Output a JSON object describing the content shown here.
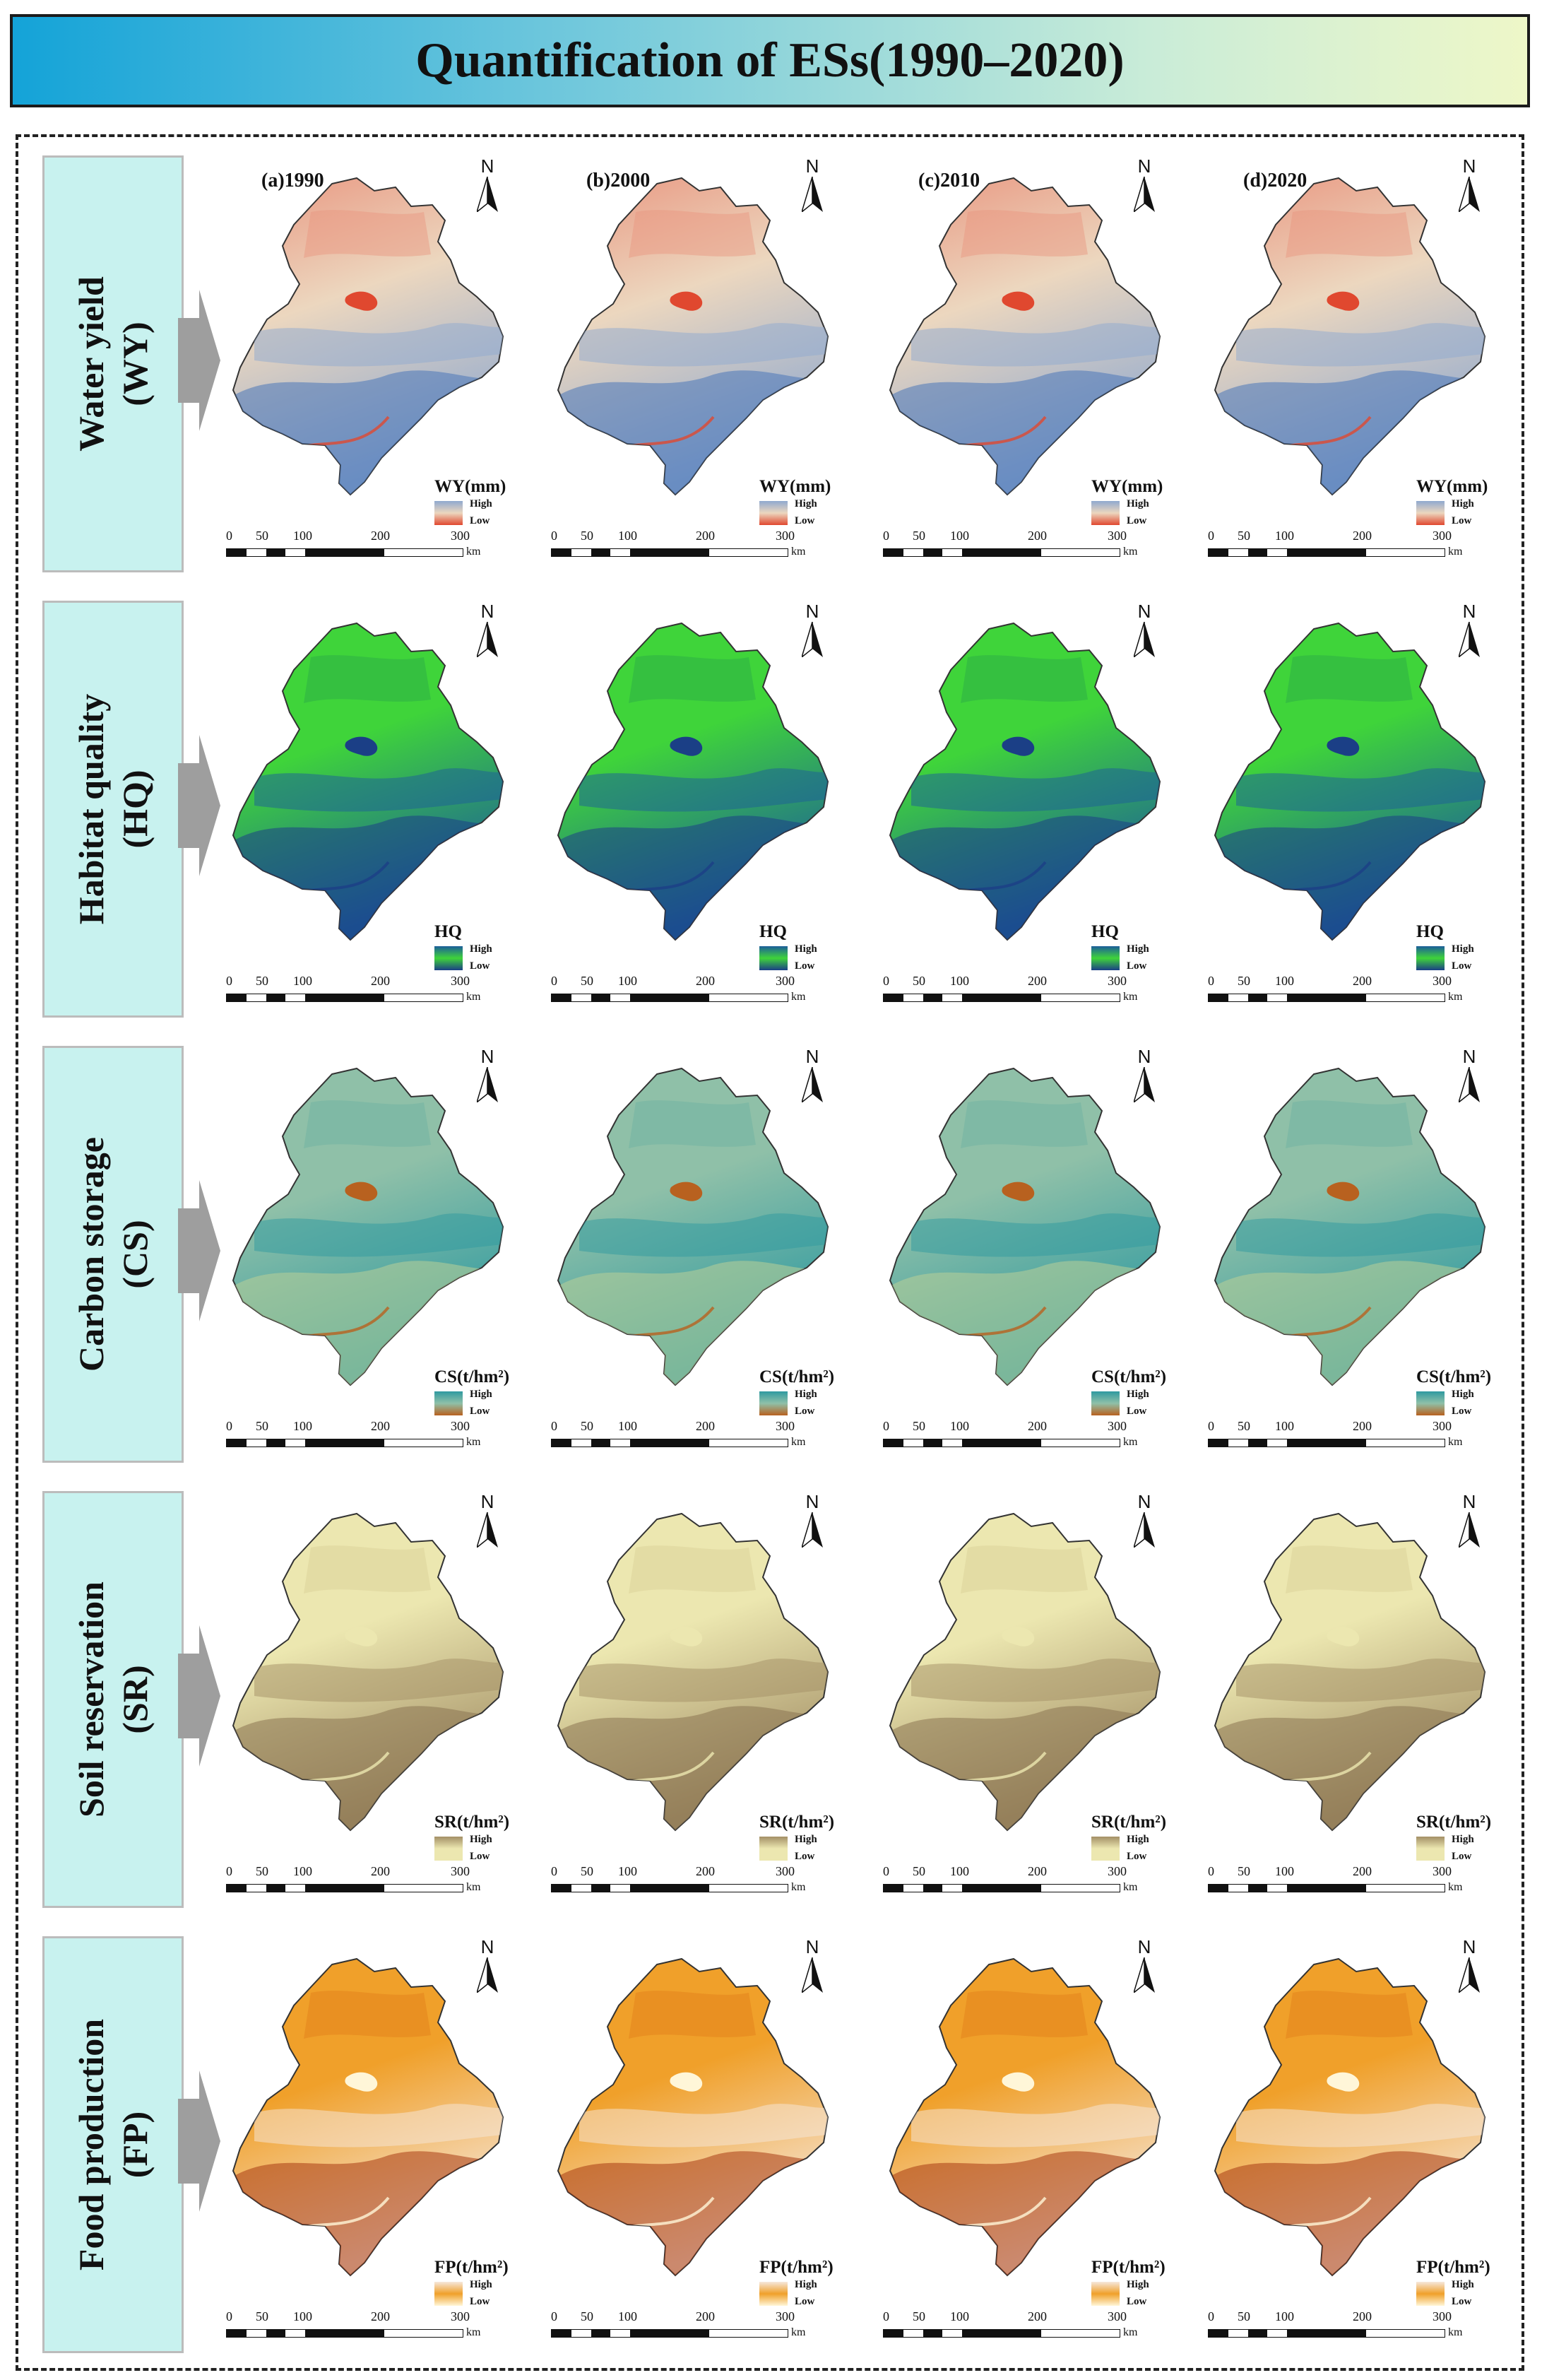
{
  "title": "Quantification of ESs(1990–2020)",
  "years": [
    "(a)1990",
    "(b)2000",
    "(c)2010",
    "(d)2020"
  ],
  "north_label": "N",
  "scale_bar": {
    "ticks": [
      "0",
      "50",
      "100",
      "200",
      "300"
    ],
    "unit": "km"
  },
  "rows": [
    {
      "label_line1": "Water yield",
      "label_line2": "(WY)",
      "legend_title": "WY(mm)",
      "high": "High",
      "low": "Low",
      "colors": {
        "bg": "#ecd7bf",
        "a": "#e9957f",
        "b": "#8fa9cf",
        "c": "#4b76b8",
        "water": "#e0482f"
      }
    },
    {
      "label_line1": "Habitat quality",
      "label_line2": "(HQ)",
      "legend_title": "HQ",
      "high": "High",
      "low": "Low",
      "colors": {
        "bg": "#3fd43a",
        "a": "#2aa84a",
        "b": "#1c5e9a",
        "c": "#1b3f86",
        "water": "#1b3f86"
      }
    },
    {
      "label_line1": "Carbon storage",
      "label_line2": "(CS)",
      "legend_title": "CS(t/hm²)",
      "high": "High",
      "low": "Low",
      "colors": {
        "bg": "#8fc0a8",
        "a": "#6db1a2",
        "b": "#2f9aa0",
        "c": "#b9cf98",
        "water": "#b8611f"
      }
    },
    {
      "label_line1": "Soil reservation",
      "label_line2": "(SR)",
      "legend_title": "SR(t/hm²)",
      "high": "High",
      "low": "Low",
      "colors": {
        "bg": "#ece7b0",
        "a": "#d9cf97",
        "b": "#a38f66",
        "c": "#8a7552",
        "water": "#ece7b0"
      }
    },
    {
      "label_line1": "Food production",
      "label_line2": "(FP)",
      "legend_title": "FP(t/hm²)",
      "high": "High",
      "low": "Low",
      "colors": {
        "bg": "#f0a02a",
        "a": "#e07d18",
        "b": "#f6e8dc",
        "c": "#a83a12",
        "water": "#fff6d8"
      }
    }
  ]
}
